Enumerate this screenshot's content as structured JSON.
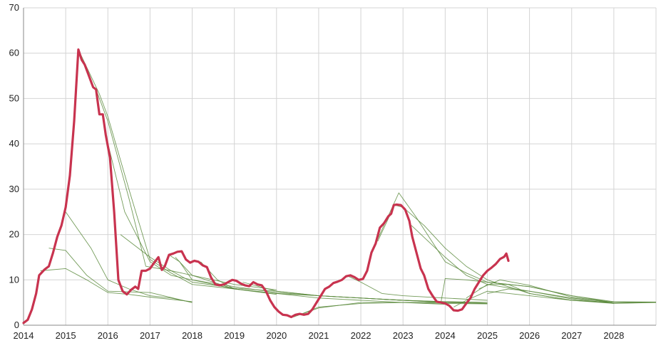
{
  "chart_data": {
    "type": "line",
    "title": "",
    "xlabel": "",
    "ylabel": "",
    "xlim": [
      2014,
      2029
    ],
    "ylim": [
      0,
      70
    ],
    "grid": true,
    "x_ticks": [
      "2014",
      "2015",
      "2016",
      "2017",
      "2018",
      "2019",
      "2020",
      "2021",
      "2022",
      "2023",
      "2024",
      "2025",
      "2026",
      "2027",
      "2028"
    ],
    "y_ticks": [
      "0",
      "10",
      "20",
      "30",
      "40",
      "50",
      "60",
      "70"
    ],
    "colors": {
      "main": "#c8334f",
      "forecast": "#5b8a3c",
      "grid": "#d4d4d4",
      "axis": "#8a8a8a"
    },
    "series": [
      {
        "role": "main",
        "points": [
          [
            2014.0,
            0.5
          ],
          [
            2014.1,
            1.2
          ],
          [
            2014.2,
            3.5
          ],
          [
            2014.3,
            7
          ],
          [
            2014.37,
            11
          ],
          [
            2014.5,
            12.3
          ],
          [
            2014.6,
            13
          ],
          [
            2014.7,
            16
          ],
          [
            2014.8,
            19.5
          ],
          [
            2014.9,
            22
          ],
          [
            2015.0,
            26
          ],
          [
            2015.1,
            33
          ],
          [
            2015.2,
            45
          ],
          [
            2015.3,
            60.8
          ],
          [
            2015.38,
            58.5
          ],
          [
            2015.45,
            57.5
          ],
          [
            2015.55,
            55
          ],
          [
            2015.65,
            52.5
          ],
          [
            2015.72,
            52
          ],
          [
            2015.8,
            46.5
          ],
          [
            2015.88,
            46.5
          ],
          [
            2015.95,
            42
          ],
          [
            2016.05,
            37
          ],
          [
            2016.15,
            25
          ],
          [
            2016.25,
            10
          ],
          [
            2016.35,
            7.5
          ],
          [
            2016.45,
            6.8
          ],
          [
            2016.55,
            7.8
          ],
          [
            2016.65,
            8.5
          ],
          [
            2016.72,
            8
          ],
          [
            2016.8,
            12
          ],
          [
            2016.9,
            12
          ],
          [
            2017.0,
            12.5
          ],
          [
            2017.1,
            13.8
          ],
          [
            2017.2,
            15
          ],
          [
            2017.28,
            12.2
          ],
          [
            2017.35,
            13
          ],
          [
            2017.45,
            15.5
          ],
          [
            2017.55,
            15.8
          ],
          [
            2017.65,
            16.2
          ],
          [
            2017.75,
            16.3
          ],
          [
            2017.85,
            14.5
          ],
          [
            2017.95,
            13.8
          ],
          [
            2018.05,
            14.2
          ],
          [
            2018.15,
            14
          ],
          [
            2018.25,
            13.2
          ],
          [
            2018.35,
            12.8
          ],
          [
            2018.45,
            10.5
          ],
          [
            2018.55,
            9
          ],
          [
            2018.65,
            8.8
          ],
          [
            2018.75,
            9
          ],
          [
            2018.85,
            9.5
          ],
          [
            2018.95,
            10
          ],
          [
            2019.05,
            9.8
          ],
          [
            2019.15,
            9.2
          ],
          [
            2019.25,
            8.8
          ],
          [
            2019.35,
            8.6
          ],
          [
            2019.45,
            9.5
          ],
          [
            2019.55,
            9
          ],
          [
            2019.65,
            8.8
          ],
          [
            2019.75,
            7.5
          ],
          [
            2019.85,
            5.5
          ],
          [
            2019.95,
            4
          ],
          [
            2020.05,
            3
          ],
          [
            2020.15,
            2.3
          ],
          [
            2020.25,
            2.2
          ],
          [
            2020.35,
            1.8
          ],
          [
            2020.45,
            2.3
          ],
          [
            2020.55,
            2.5
          ],
          [
            2020.65,
            2.3
          ],
          [
            2020.75,
            2.5
          ],
          [
            2020.85,
            3.5
          ],
          [
            2020.95,
            5
          ],
          [
            2021.05,
            6.5
          ],
          [
            2021.15,
            8
          ],
          [
            2021.25,
            8.5
          ],
          [
            2021.35,
            9.3
          ],
          [
            2021.45,
            9.6
          ],
          [
            2021.55,
            10
          ],
          [
            2021.65,
            10.8
          ],
          [
            2021.75,
            11
          ],
          [
            2021.85,
            10.6
          ],
          [
            2021.95,
            10
          ],
          [
            2022.05,
            10.2
          ],
          [
            2022.15,
            12
          ],
          [
            2022.25,
            16
          ],
          [
            2022.35,
            18
          ],
          [
            2022.45,
            21.5
          ],
          [
            2022.55,
            22.5
          ],
          [
            2022.65,
            24
          ],
          [
            2022.72,
            24.6
          ],
          [
            2022.78,
            26.5
          ],
          [
            2022.85,
            26.6
          ],
          [
            2022.95,
            26.5
          ],
          [
            2023.05,
            25.5
          ],
          [
            2023.15,
            23
          ],
          [
            2023.22,
            19.5
          ],
          [
            2023.32,
            16
          ],
          [
            2023.42,
            12.5
          ],
          [
            2023.5,
            11
          ],
          [
            2023.6,
            8
          ],
          [
            2023.7,
            6.5
          ],
          [
            2023.8,
            5.2
          ],
          [
            2023.9,
            5
          ],
          [
            2024.0,
            4.8
          ],
          [
            2024.1,
            4.3
          ],
          [
            2024.2,
            3.3
          ],
          [
            2024.3,
            3.2
          ],
          [
            2024.4,
            3.5
          ],
          [
            2024.5,
            4.8
          ],
          [
            2024.6,
            6
          ],
          [
            2024.7,
            8
          ],
          [
            2024.8,
            9.5
          ],
          [
            2024.9,
            11
          ],
          [
            2025.0,
            12
          ],
          [
            2025.1,
            12.7
          ],
          [
            2025.2,
            13.5
          ],
          [
            2025.3,
            14.6
          ],
          [
            2025.4,
            15.1
          ],
          [
            2025.45,
            15.8
          ],
          [
            2025.5,
            14.2
          ]
        ]
      },
      {
        "role": "forecast",
        "points": [
          [
            2015.0,
            25
          ],
          [
            2015.6,
            17
          ],
          [
            2016.0,
            10
          ],
          [
            2016.5,
            8
          ],
          [
            2017.0,
            6.5
          ],
          [
            2017.5,
            6
          ],
          [
            2018.0,
            5
          ]
        ]
      },
      {
        "role": "forecast",
        "points": [
          [
            2014.6,
            17
          ],
          [
            2015.0,
            16.5
          ],
          [
            2015.5,
            11
          ],
          [
            2016.0,
            7.5
          ],
          [
            2017.0,
            7.2
          ],
          [
            2018.0,
            5
          ]
        ]
      },
      {
        "role": "forecast",
        "points": [
          [
            2014.4,
            12
          ],
          [
            2015.0,
            12.5
          ],
          [
            2015.5,
            10
          ],
          [
            2016.0,
            7.2
          ],
          [
            2016.5,
            6.8
          ],
          [
            2017.0,
            6.2
          ],
          [
            2018.0,
            5.2
          ]
        ]
      },
      {
        "role": "forecast",
        "points": [
          [
            2015.3,
            60.8
          ],
          [
            2015.8,
            51
          ],
          [
            2016.0,
            46
          ],
          [
            2016.5,
            30
          ],
          [
            2017.0,
            14.5
          ],
          [
            2017.5,
            11.5
          ],
          [
            2018.0,
            9
          ],
          [
            2019.0,
            8
          ]
        ]
      },
      {
        "role": "forecast",
        "points": [
          [
            2015.72,
            52
          ],
          [
            2016.0,
            45
          ],
          [
            2016.5,
            28
          ],
          [
            2016.9,
            13
          ],
          [
            2017.5,
            12
          ],
          [
            2018.0,
            11
          ],
          [
            2019.0,
            9
          ],
          [
            2020.0,
            7.8
          ]
        ]
      },
      {
        "role": "forecast",
        "points": [
          [
            2015.95,
            42
          ],
          [
            2016.4,
            25
          ],
          [
            2017.0,
            14
          ],
          [
            2017.5,
            11
          ],
          [
            2018.0,
            10
          ],
          [
            2019.0,
            8
          ],
          [
            2020.0,
            6.8
          ]
        ]
      },
      {
        "role": "forecast",
        "points": [
          [
            2016.3,
            20
          ],
          [
            2017.0,
            15
          ],
          [
            2017.5,
            12
          ],
          [
            2018.0,
            9.5
          ],
          [
            2019.0,
            8.2
          ],
          [
            2020.0,
            7.5
          ],
          [
            2021.0,
            6.5
          ],
          [
            2022.0,
            6
          ],
          [
            2023.0,
            5.5
          ],
          [
            2024.0,
            5.2
          ],
          [
            2025.0,
            5
          ]
        ]
      },
      {
        "role": "forecast",
        "points": [
          [
            2017.45,
            15.5
          ],
          [
            2017.7,
            14
          ],
          [
            2018.0,
            10
          ],
          [
            2019.0,
            8.5
          ],
          [
            2020.0,
            7.2
          ],
          [
            2021.0,
            6.5
          ],
          [
            2022.0,
            6
          ],
          [
            2023.0,
            5.5
          ],
          [
            2024.0,
            5.2
          ],
          [
            2025.0,
            5
          ]
        ]
      },
      {
        "role": "forecast",
        "points": [
          [
            2017.6,
            15
          ],
          [
            2018.0,
            11
          ],
          [
            2019.0,
            8
          ],
          [
            2020.0,
            7
          ],
          [
            2021.0,
            6
          ],
          [
            2022.0,
            5.5
          ],
          [
            2023.0,
            5
          ],
          [
            2024.0,
            5
          ],
          [
            2025.0,
            4.8
          ]
        ]
      },
      {
        "role": "forecast",
        "points": [
          [
            2018.2,
            14
          ],
          [
            2018.6,
            10
          ],
          [
            2019.0,
            8
          ],
          [
            2020.0,
            7
          ],
          [
            2021.0,
            6.5
          ],
          [
            2022.0,
            6
          ],
          [
            2023.0,
            5.5
          ],
          [
            2024.0,
            5
          ],
          [
            2025.0,
            4.8
          ]
        ]
      },
      {
        "role": "forecast",
        "points": [
          [
            2019.2,
            9.5
          ],
          [
            2020.0,
            7.5
          ],
          [
            2021.0,
            6.5
          ],
          [
            2022.0,
            6
          ],
          [
            2023.0,
            5.5
          ],
          [
            2024.0,
            5
          ],
          [
            2025.0,
            4.8
          ]
        ]
      },
      {
        "role": "forecast",
        "points": [
          [
            2020.4,
            1.8
          ],
          [
            2021.0,
            3.8
          ],
          [
            2022.0,
            5
          ],
          [
            2023.0,
            5
          ],
          [
            2024.0,
            4.8
          ],
          [
            2025.0,
            4.7
          ]
        ]
      },
      {
        "role": "forecast",
        "points": [
          [
            2020.6,
            2.5
          ],
          [
            2021.0,
            4
          ],
          [
            2022.0,
            4.8
          ],
          [
            2023.0,
            5
          ],
          [
            2024.0,
            4.6
          ]
        ]
      },
      {
        "role": "forecast",
        "points": [
          [
            2021.3,
            9
          ],
          [
            2021.7,
            10.8
          ],
          [
            2022.0,
            9.5
          ],
          [
            2022.5,
            7
          ],
          [
            2023.0,
            6.5
          ],
          [
            2024.0,
            6
          ],
          [
            2025.0,
            5.5
          ]
        ]
      },
      {
        "role": "forecast",
        "points": [
          [
            2022.4,
            18.5
          ],
          [
            2022.8,
            26.5
          ],
          [
            2023.0,
            26
          ],
          [
            2023.5,
            22
          ],
          [
            2024.0,
            17
          ],
          [
            2024.5,
            13
          ],
          [
            2025.0,
            10
          ],
          [
            2026.0,
            7
          ],
          [
            2027.0,
            5.5
          ],
          [
            2028.0,
            4.8
          ]
        ]
      },
      {
        "role": "forecast",
        "points": [
          [
            2022.4,
            19
          ],
          [
            2022.9,
            29.2
          ],
          [
            2023.3,
            24
          ],
          [
            2024.0,
            14
          ],
          [
            2024.5,
            11.5
          ],
          [
            2025.0,
            9.5
          ],
          [
            2026.0,
            8.5
          ],
          [
            2027.0,
            6.5
          ],
          [
            2028.0,
            5
          ]
        ]
      },
      {
        "role": "forecast",
        "points": [
          [
            2023.2,
            22
          ],
          [
            2024.0,
            15
          ],
          [
            2024.5,
            11
          ],
          [
            2025.0,
            9
          ],
          [
            2026.0,
            7.5
          ],
          [
            2027.0,
            6
          ],
          [
            2028.0,
            5
          ]
        ]
      },
      {
        "role": "forecast",
        "points": [
          [
            2023.9,
            5
          ],
          [
            2024.0,
            10.3
          ],
          [
            2024.5,
            10
          ],
          [
            2025.0,
            9.5
          ],
          [
            2026.0,
            8.5
          ],
          [
            2027.0,
            6.5
          ],
          [
            2028.0,
            5.2
          ],
          [
            2029.0,
            5.1
          ]
        ]
      },
      {
        "role": "forecast",
        "points": [
          [
            2024.2,
            4
          ],
          [
            2024.5,
            5.5
          ],
          [
            2025.0,
            7.5
          ],
          [
            2026.0,
            6.5
          ],
          [
            2027.0,
            5.5
          ],
          [
            2028.0,
            5
          ],
          [
            2029.0,
            5.1
          ]
        ]
      },
      {
        "role": "forecast",
        "points": [
          [
            2024.5,
            6
          ],
          [
            2025.0,
            9
          ],
          [
            2025.5,
            9
          ],
          [
            2026.0,
            7
          ],
          [
            2027.0,
            5.5
          ],
          [
            2028.0,
            5
          ],
          [
            2029.0,
            5
          ]
        ]
      },
      {
        "role": "forecast",
        "points": [
          [
            2024.8,
            8
          ],
          [
            2025.3,
            10
          ],
          [
            2026.0,
            8.8
          ],
          [
            2027.0,
            6.2
          ],
          [
            2028.0,
            5
          ],
          [
            2029.0,
            5.1
          ]
        ]
      },
      {
        "role": "forecast",
        "points": [
          [
            2025.0,
            7
          ],
          [
            2025.5,
            8
          ],
          [
            2026.0,
            7.5
          ],
          [
            2027.0,
            5.8
          ],
          [
            2028.0,
            4.8
          ],
          [
            2029.0,
            5
          ]
        ]
      }
    ]
  }
}
